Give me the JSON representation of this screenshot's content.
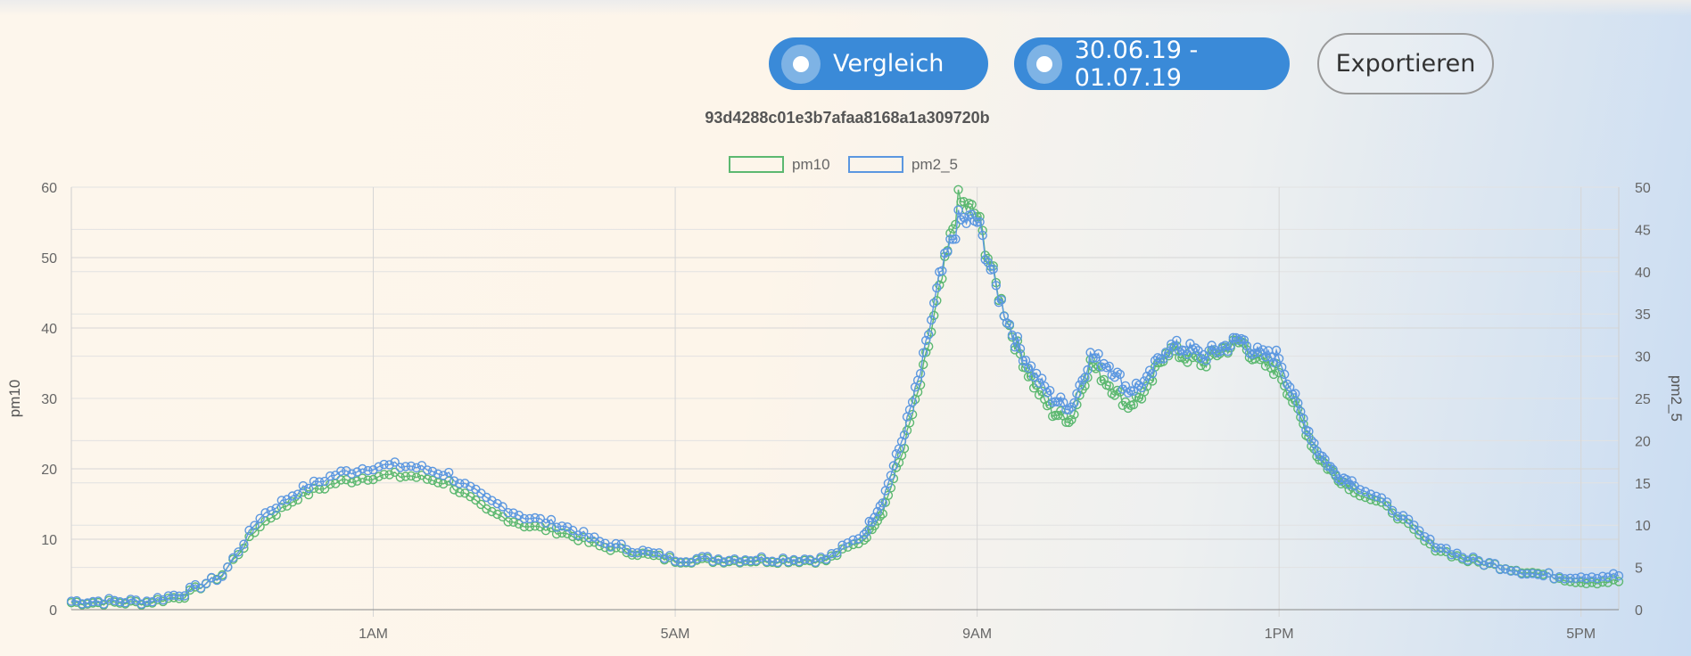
{
  "toolbar": {
    "compare_label": "Vergleich",
    "date_range_label": "30.06.19 - 01.07.19",
    "export_label": "Exportieren",
    "accent_color": "#3a8ad8"
  },
  "device": {
    "id": "93d4288c01e3b7afaa8168a1a309720b"
  },
  "chart_data": {
    "type": "line",
    "title": "93d4288c01e3b7afaa8168a1a309720b",
    "x_ticks": [
      "1AM",
      "5AM",
      "9AM",
      "1PM",
      "5PM"
    ],
    "x_tick_hours": [
      1,
      5,
      9,
      13,
      17
    ],
    "x_range_hours": [
      -3,
      17.5
    ],
    "y_left": {
      "label": "pm10",
      "range": [
        0,
        60
      ],
      "ticks": [
        0,
        10,
        20,
        30,
        40,
        50,
        60
      ]
    },
    "y_right": {
      "label": "pm2_5",
      "range": [
        0,
        50
      ],
      "ticks": [
        0,
        5,
        10,
        15,
        20,
        25,
        30,
        35,
        40,
        45,
        50
      ]
    },
    "grid": true,
    "legend_position": "top",
    "series": [
      {
        "name": "pm10",
        "axis": "left",
        "color": "#5cb870",
        "x_hours": [
          -3,
          -2.5,
          -2,
          -1.5,
          -1,
          -0.5,
          0,
          0.5,
          1,
          1.5,
          2,
          2.5,
          3,
          3.5,
          4,
          4.5,
          5,
          5.5,
          6,
          6.5,
          7,
          7.5,
          7.75,
          8,
          8.25,
          8.5,
          8.75,
          9,
          9.25,
          9.5,
          9.75,
          10,
          10.25,
          10.5,
          10.75,
          11,
          11.25,
          11.5,
          11.75,
          12,
          12.25,
          12.5,
          12.75,
          13,
          13.25,
          13.5,
          13.75,
          14,
          14.5,
          15,
          15.5,
          16,
          16.5,
          17,
          17.5
        ],
        "values": [
          1,
          1,
          1,
          2,
          5,
          12,
          16,
          18,
          19,
          19,
          18,
          14,
          12,
          11,
          9,
          8,
          7,
          7,
          7,
          7,
          7,
          10,
          14,
          22,
          32,
          45,
          58,
          56,
          46,
          38,
          32,
          28,
          27,
          35,
          32,
          29,
          31,
          37,
          36,
          35,
          37,
          38,
          35,
          34,
          28,
          22,
          19,
          17,
          14,
          9,
          7,
          6,
          5,
          4,
          4
        ]
      },
      {
        "name": "pm2_5",
        "axis": "right",
        "color": "#5b97e0",
        "x_hours": [
          -3,
          -2.5,
          -2,
          -1.5,
          -1,
          -0.5,
          0,
          0.5,
          1,
          1.5,
          2,
          2.5,
          3,
          3.5,
          4,
          4.5,
          5,
          5.5,
          6,
          6.5,
          7,
          7.5,
          7.75,
          8,
          8.25,
          8.5,
          8.75,
          9,
          9.25,
          9.5,
          9.75,
          10,
          10.25,
          10.5,
          10.75,
          11,
          11.25,
          11.5,
          11.75,
          12,
          12.25,
          12.5,
          12.75,
          13,
          13.25,
          13.5,
          13.75,
          14,
          14.5,
          15,
          15.5,
          16,
          16.5,
          17,
          17.5
        ],
        "values": [
          1,
          1,
          1,
          2,
          4,
          11,
          14,
          16,
          17,
          17,
          16,
          13,
          11,
          10,
          8,
          7,
          6,
          6,
          6,
          6,
          6,
          9,
          13,
          20,
          28,
          39,
          46,
          46,
          38,
          32,
          28,
          25,
          24,
          30,
          29,
          26,
          27,
          31,
          31,
          30,
          31,
          32,
          30,
          30,
          24,
          19,
          16,
          15,
          12,
          8,
          6,
          5,
          4,
          4,
          4
        ]
      }
    ]
  }
}
